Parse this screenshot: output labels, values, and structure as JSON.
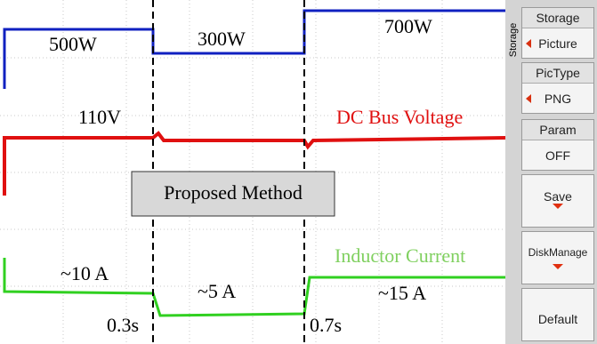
{
  "scope": {
    "power_labels": [
      "500W",
      "300W",
      "700W"
    ],
    "voltage_label": "110V",
    "voltage_name": "DC Bus Voltage",
    "method": "Proposed Method",
    "current_name": "Inductor Current",
    "current_labels": [
      "~10 A",
      "~5 A",
      "~15 A"
    ],
    "time_labels": [
      "0.3s",
      "0.7s"
    ]
  },
  "menu": {
    "side_label": "Storage",
    "buttons": [
      {
        "title": "Storage",
        "value": "Picture"
      },
      {
        "title": "PicType",
        "value": "PNG"
      },
      {
        "title": "Param",
        "value": "OFF"
      },
      {
        "value": "Save"
      },
      {
        "value": "DiskManage"
      },
      {
        "value": "Default"
      }
    ]
  }
}
